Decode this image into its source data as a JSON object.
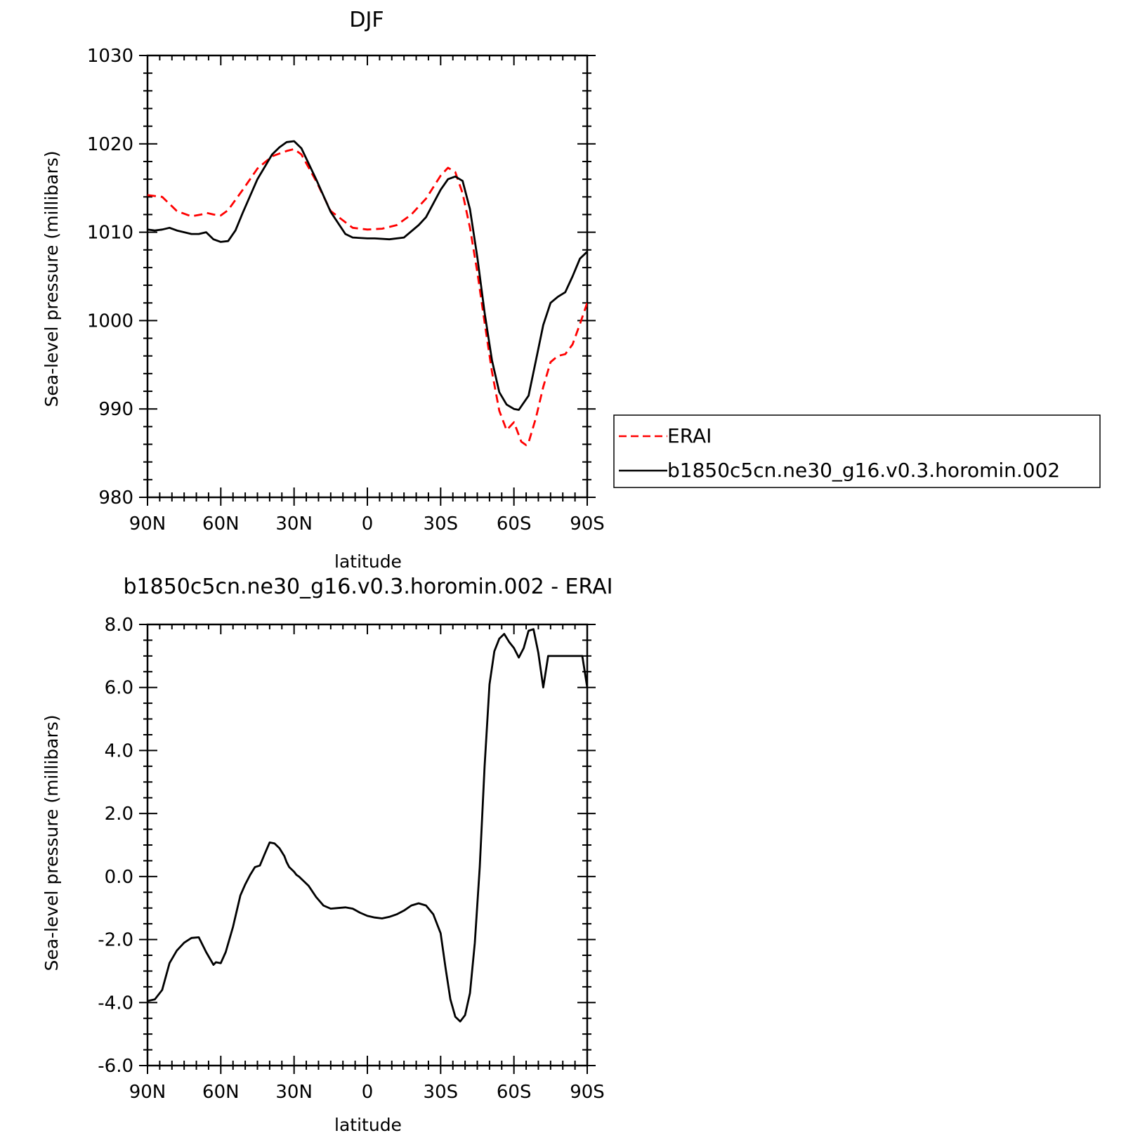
{
  "chart_data": [
    {
      "type": "line",
      "title": "DJF",
      "xlabel": "latitude",
      "ylabel": "Sea-level pressure (millibars)",
      "xticks": [
        "90N",
        "60N",
        "30N",
        "0",
        "30S",
        "60S",
        "90S"
      ],
      "yticks": [
        "980",
        "990",
        "1000",
        "1010",
        "1020",
        "1030"
      ],
      "xlim": [
        90,
        -90
      ],
      "ylim": [
        980,
        1030
      ],
      "grid": false,
      "legend": {
        "placement": "right, outside",
        "entries": [
          "ERAI",
          "b1850c5cn.ne30_g16.v0.3.horomin.002"
        ]
      },
      "series": [
        {
          "name": "ERAI",
          "color": "#ff0000",
          "dash": "dashed",
          "x": [
            90,
            84,
            81,
            78,
            72,
            68,
            66,
            63,
            60,
            57,
            51,
            45,
            39,
            33,
            30,
            27,
            21,
            15,
            6,
            0,
            -6,
            -12,
            -18,
            -24,
            -30,
            -33,
            -36,
            -39,
            -42,
            -45,
            -48,
            -51,
            -54,
            -57,
            -60,
            -63,
            -65,
            -66,
            -69,
            -72,
            -75,
            -78,
            -81,
            -84,
            -87,
            -90
          ],
          "y": [
            1014.2,
            1014.0,
            1013.2,
            1012.4,
            1011.8,
            1012.0,
            1012.2,
            1012.0,
            1011.9,
            1012.5,
            1014.8,
            1017.2,
            1018.6,
            1019.2,
            1019.4,
            1018.8,
            1015.8,
            1012.4,
            1010.5,
            1010.3,
            1010.4,
            1010.8,
            1012.0,
            1013.8,
            1016.4,
            1017.3,
            1016.8,
            1014.4,
            1010.5,
            1005.5,
            999.8,
            994.2,
            989.8,
            987.6,
            988.5,
            986.3,
            985.9,
            986.2,
            989.0,
            992.5,
            995.3,
            996.0,
            996.2,
            997.3,
            999.6,
            1002.0
          ]
        },
        {
          "name": "b1850c5cn.ne30_g16.v0.3.horomin.002",
          "color": "#000000",
          "dash": "solid",
          "x": [
            90,
            87,
            84,
            81,
            78,
            72,
            69,
            66,
            63,
            60,
            57,
            54,
            51,
            45,
            39,
            36,
            33,
            30,
            27,
            21,
            15,
            9,
            6,
            0,
            -3,
            -9,
            -15,
            -21,
            -24,
            -30,
            -33,
            -36,
            -39,
            -42,
            -45,
            -48,
            -51,
            -54,
            -57,
            -60,
            -62,
            -66,
            -69,
            -72,
            -75,
            -78,
            -81,
            -84,
            -87,
            -90
          ],
          "y": [
            1010.3,
            1010.2,
            1010.3,
            1010.5,
            1010.2,
            1009.8,
            1009.8,
            1010.0,
            1009.2,
            1008.9,
            1009.0,
            1010.2,
            1012.2,
            1016.0,
            1018.8,
            1019.6,
            1020.2,
            1020.3,
            1019.5,
            1016.0,
            1012.3,
            1009.8,
            1009.4,
            1009.3,
            1009.3,
            1009.2,
            1009.4,
            1010.8,
            1011.7,
            1014.8,
            1016.0,
            1016.3,
            1015.8,
            1012.6,
            1007.2,
            1000.9,
            995.5,
            991.9,
            990.5,
            990.0,
            989.9,
            991.5,
            995.5,
            999.5,
            1002.0,
            1002.7,
            1003.2,
            1005.0,
            1007.0,
            1007.8
          ]
        }
      ]
    },
    {
      "type": "line",
      "title": "b1850c5cn.ne30_g16.v0.3.horomin.002 - ERAI",
      "xlabel": "latitude",
      "ylabel": "Sea-level pressure (millibars)",
      "xticks": [
        "90N",
        "60N",
        "30N",
        "0",
        "30S",
        "60S",
        "90S"
      ],
      "yticks": [
        "-6.0",
        "-4.0",
        "-2.0",
        "0.0",
        "2.0",
        "4.0",
        "6.0",
        "8.0"
      ],
      "xlim": [
        90,
        -90
      ],
      "ylim": [
        -6,
        8
      ],
      "grid": false,
      "series": [
        {
          "color": "#000000",
          "dash": "solid",
          "x": [
            90,
            87,
            86,
            84,
            81,
            78,
            75,
            72,
            69,
            66,
            63,
            62,
            60,
            58,
            55,
            52,
            50,
            48,
            46,
            44,
            42,
            40,
            38,
            36,
            34,
            33,
            32,
            30,
            29,
            28,
            24,
            21,
            18,
            15,
            12,
            9,
            6,
            3,
            0,
            -3,
            -6,
            -9,
            -12,
            -15,
            -18,
            -21,
            -24,
            -27,
            -30,
            -32,
            -34,
            -36,
            -38,
            -40,
            -42,
            -44,
            -46,
            -48,
            -50,
            -52,
            -54,
            -56,
            -58,
            -60,
            -62,
            -64,
            -66,
            -68,
            -70,
            -72,
            -74,
            -76,
            -78,
            -80,
            -82,
            -84,
            -86,
            -88,
            -90
          ],
          "y": [
            -3.95,
            -3.9,
            -3.8,
            -3.6,
            -2.75,
            -2.35,
            -2.1,
            -1.95,
            -1.93,
            -2.4,
            -2.8,
            -2.72,
            -2.75,
            -2.4,
            -1.6,
            -0.6,
            -0.25,
            0.05,
            0.3,
            0.35,
            0.72,
            1.08,
            1.05,
            0.9,
            0.65,
            0.45,
            0.3,
            0.15,
            0.05,
            0.0,
            -0.3,
            -0.65,
            -0.92,
            -1.02,
            -1.0,
            -0.98,
            -1.02,
            -1.15,
            -1.25,
            -1.3,
            -1.33,
            -1.28,
            -1.2,
            -1.08,
            -0.92,
            -0.85,
            -0.92,
            -1.2,
            -1.8,
            -2.9,
            -3.9,
            -4.45,
            -4.6,
            -4.4,
            -3.7,
            -2.1,
            0.3,
            3.5,
            6.1,
            7.15,
            7.55,
            7.7,
            7.45,
            7.25,
            6.95,
            7.25,
            7.8,
            7.85,
            7.1,
            6.0,
            7.0,
            7.0,
            7.0,
            7.0,
            7.0,
            7.0,
            7.0,
            7.0,
            6.0
          ]
        }
      ]
    }
  ]
}
